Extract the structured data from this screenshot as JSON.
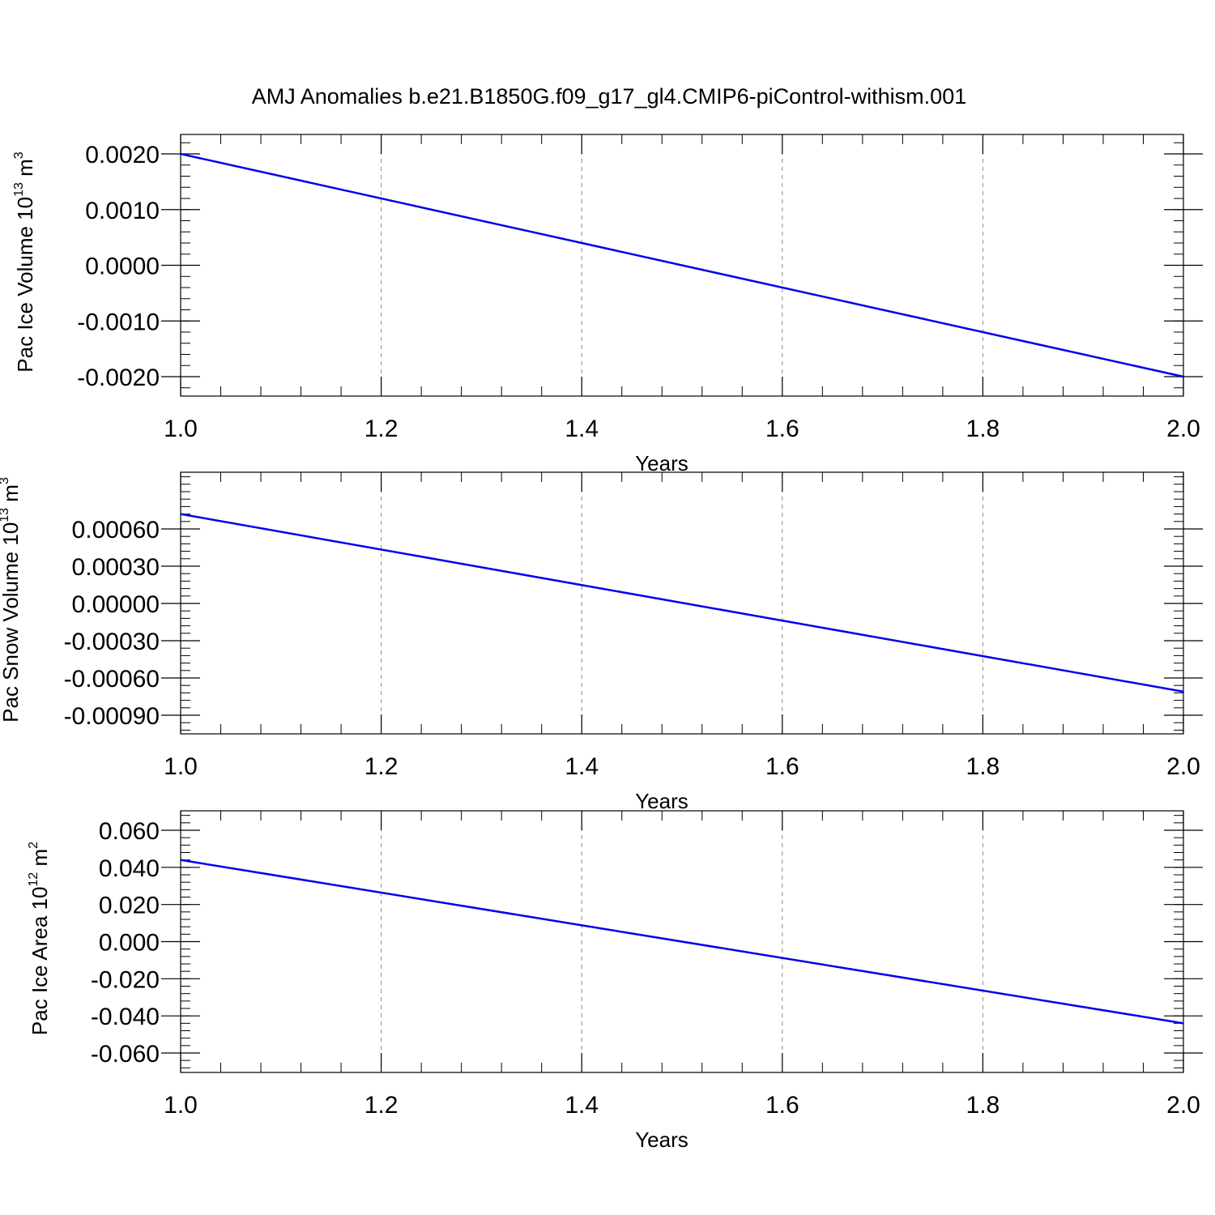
{
  "title": "AMJ Anomalies b.e21.B1850G.f09_g17_gl4.CMIP6-piControl-withism.001",
  "line_color": "#0000ee",
  "chart_data": [
    {
      "type": "line",
      "title": "",
      "xlabel": "Years",
      "ylabel": {
        "text": "Pac Ice Volume 10",
        "exp": "13",
        "unit": " m",
        "unit_exp": "3"
      },
      "xlim": [
        1.0,
        2.0
      ],
      "ylim": [
        -0.002,
        0.002
      ],
      "xticks": [
        "1.0",
        "1.2",
        "1.4",
        "1.6",
        "1.8",
        "2.0"
      ],
      "yticks": [
        "0.0020",
        "0.0010",
        "0.0000",
        "-0.0010",
        "-0.0020"
      ],
      "ytick_values": [
        0.002,
        0.001,
        0.0,
        -0.001,
        -0.002
      ],
      "grid": "vertical-dashed",
      "series": [
        {
          "x": [
            1.0,
            2.0
          ],
          "y": [
            0.002,
            -0.002
          ]
        }
      ]
    },
    {
      "type": "line",
      "title": "",
      "xlabel": "Years",
      "ylabel": {
        "text": "Pac Snow Volume 10",
        "exp": "13",
        "unit": " m",
        "unit_exp": "3"
      },
      "xlim": [
        1.0,
        2.0
      ],
      "ylim": [
        -0.0009,
        0.0009
      ],
      "xticks": [
        "1.0",
        "1.2",
        "1.4",
        "1.6",
        "1.8",
        "2.0"
      ],
      "yticks": [
        "0.00060",
        "0.00030",
        "0.00000",
        "-0.00030",
        "-0.00060",
        "-0.00090"
      ],
      "ytick_values": [
        0.0006,
        0.0003,
        0.0,
        -0.0003,
        -0.0006,
        -0.0009
      ],
      "grid": "vertical-dashed",
      "series": [
        {
          "x": [
            1.0,
            2.0
          ],
          "y": [
            0.00072,
            -0.00071
          ]
        }
      ]
    },
    {
      "type": "line",
      "title": "",
      "xlabel": "Years",
      "ylabel": {
        "text": "Pac Ice Area 10",
        "exp": "12",
        "unit": " m",
        "unit_exp": "2"
      },
      "xlim": [
        1.0,
        2.0
      ],
      "ylim": [
        -0.06,
        0.06
      ],
      "xticks": [
        "1.0",
        "1.2",
        "1.4",
        "1.6",
        "1.8",
        "2.0"
      ],
      "yticks": [
        "0.060",
        "0.040",
        "0.020",
        "0.000",
        "-0.020",
        "-0.040",
        "-0.060"
      ],
      "ytick_values": [
        0.06,
        0.04,
        0.02,
        0.0,
        -0.02,
        -0.04,
        -0.06
      ],
      "grid": "vertical-dashed",
      "series": [
        {
          "x": [
            1.0,
            2.0
          ],
          "y": [
            0.044,
            -0.044
          ]
        }
      ]
    }
  ]
}
